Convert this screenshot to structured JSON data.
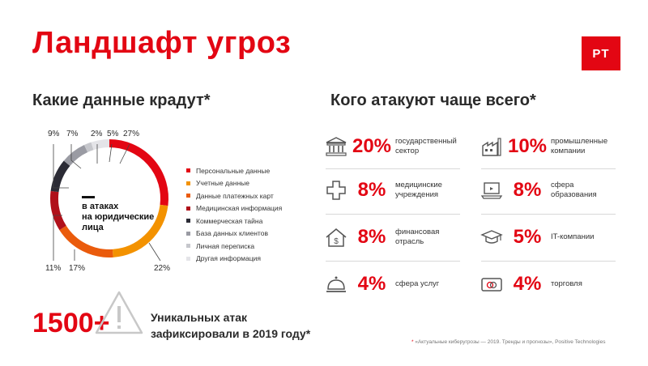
{
  "title": "Ландшафт угроз",
  "logo_text": "PT",
  "left": {
    "heading": "Какие данные крадут*",
    "center_label": [
      "в атаках",
      "на юридические",
      "лица"
    ],
    "percents": [
      "9%",
      "7%",
      "2%",
      "5%",
      "27%",
      "22%",
      "17%",
      "11%"
    ],
    "legend": [
      {
        "label": "Персональные данные",
        "color": "#e30613"
      },
      {
        "label": "Учетные данные",
        "color": "#f39200"
      },
      {
        "label": "Данные платежных карт",
        "color": "#ea5b0c"
      },
      {
        "label": "Медицинская информация",
        "color": "#b0101a"
      },
      {
        "label": "Коммерческая тайна",
        "color": "#2b2b35"
      },
      {
        "label": "База данных клиентов",
        "color": "#9a9ba3"
      },
      {
        "label": "Личная переписка",
        "color": "#c6c7cc"
      },
      {
        "label": "Другая информация",
        "color": "#e4e4e8"
      }
    ],
    "big_number": "1500+",
    "unique_text_1": "Уникальных атак",
    "unique_text_2": "зафиксировали в 2019 году*"
  },
  "right": {
    "heading": "Кого атакуют чаще всего*",
    "sectors": [
      {
        "value": "20%",
        "label1": "государственный",
        "label2": "сектор",
        "icon": "bank-icon"
      },
      {
        "value": "10%",
        "label1": "промышленные",
        "label2": "компании",
        "icon": "factory-icon"
      },
      {
        "value": "8%",
        "label1": "медицинские",
        "label2": "учреждения",
        "icon": "medical-cross-icon"
      },
      {
        "value": "8%",
        "label1": "сфера",
        "label2": "образования",
        "icon": "laptop-icon"
      },
      {
        "value": "8%",
        "label1": "финансовая",
        "label2": "отрасль",
        "icon": "house-dollar-icon"
      },
      {
        "value": "5%",
        "label1": "IT-компании",
        "label2": "",
        "icon": "graduation-cap-icon"
      },
      {
        "value": "4%",
        "label1": "сфера услуг",
        "label2": "",
        "icon": "service-bell-icon"
      },
      {
        "value": "4%",
        "label1": "торговля",
        "label2": "",
        "icon": "credit-card-icon"
      }
    ]
  },
  "footnote_star": "*",
  "footnote_text": "«Актуальные киберугрозы — 2019. Тренды и прогнозы», Positive Technologies",
  "chart_data": {
    "type": "pie",
    "categories": [
      "Персональные данные",
      "Учетные данные",
      "Данные платежных карт",
      "Медицинская информация",
      "Коммерческая тайна",
      "База данных клиентов",
      "Личная переписка",
      "Другая информация"
    ],
    "values": [
      27,
      22,
      17,
      11,
      9,
      7,
      2,
      5
    ],
    "center_label": "в атаках на юридические лица"
  }
}
